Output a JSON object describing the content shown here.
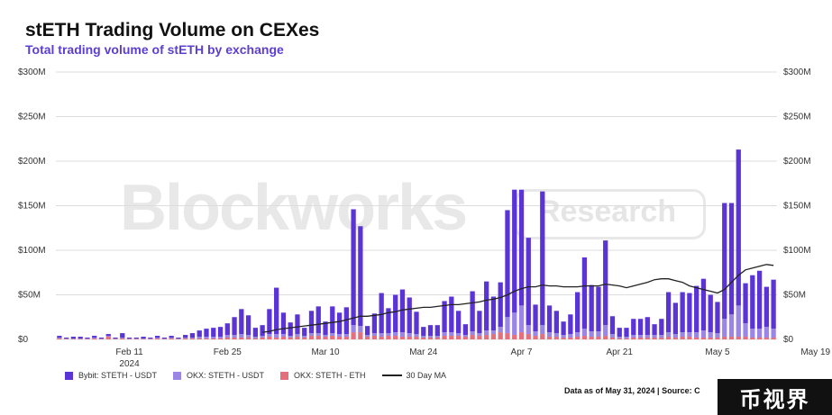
{
  "title": "stETH Trading Volume on CEXes",
  "subtitle": "Total trading volume of stETH by exchange",
  "footer": "Data as of May 31, 2024 | Source: C",
  "watermark": {
    "brand": "Blockworks",
    "research": "Research"
  },
  "logo_text": "币视界",
  "colors": {
    "subtitle": "#5b3fd1",
    "bybit": "#5b34d6",
    "okx_usdt": "#9b86e6",
    "okx_eth": "#e46f7d",
    "ma": "#222222",
    "grid": "#dddddd",
    "axis_text": "#333333"
  },
  "chart_data": {
    "type": "bar",
    "stacked": true,
    "x_start_label": "Feb 1",
    "x_ticks": [
      "Feb 11",
      "Feb 25",
      "Mar 10",
      "Mar 24",
      "Apr 7",
      "Apr 21",
      "May 5",
      "May 19"
    ],
    "x_tick_sublabel": "2024",
    "y_ticks": [
      "$0",
      "$50M",
      "$100M",
      "$150M",
      "$200M",
      "$250M",
      "$300M"
    ],
    "y_tick_values": [
      0,
      50,
      100,
      150,
      200,
      250,
      300
    ],
    "ylim": [
      0,
      300
    ],
    "y_unit": "$M",
    "series": [
      {
        "name": "Bybit: STETH - USDT",
        "color_key": "bybit",
        "values": [
          2,
          1,
          2,
          2,
          1,
          2,
          1,
          2,
          1,
          5,
          1,
          1,
          2,
          1,
          2,
          1,
          2,
          1,
          3,
          5,
          7,
          9,
          10,
          11,
          13,
          20,
          28,
          22,
          10,
          12,
          28,
          52,
          24,
          15,
          22,
          9,
          25,
          30,
          15,
          30,
          24,
          30,
          130,
          112,
          10,
          22,
          45,
          28,
          42,
          48,
          40,
          25,
          10,
          12,
          12,
          35,
          40,
          25,
          12,
          45,
          25,
          55,
          38,
          50,
          120,
          138,
          130,
          98,
          30,
          150,
          30,
          25,
          15,
          22,
          45,
          80,
          52,
          50,
          95,
          20,
          10,
          10,
          18,
          18,
          20,
          12,
          18,
          45,
          35,
          45,
          44,
          52,
          58,
          42,
          35,
          130,
          125,
          175,
          45,
          60,
          65,
          45,
          55
        ]
      },
      {
        "name": "OKX: STETH - USDT",
        "color_key": "okx_usdt",
        "values": [
          1,
          0.5,
          0.5,
          0.5,
          0.5,
          1,
          0.5,
          1,
          0.5,
          1,
          0.5,
          0.5,
          0.5,
          0.5,
          1,
          0.5,
          1,
          0.5,
          1,
          1,
          2,
          2,
          2,
          2,
          3,
          3,
          4,
          3,
          2,
          2,
          3,
          4,
          3,
          2,
          3,
          2,
          3,
          3,
          2,
          3,
          3,
          3,
          8,
          7,
          2,
          3,
          4,
          3,
          4,
          5,
          4,
          3,
          2,
          2,
          2,
          4,
          4,
          3,
          2,
          4,
          3,
          5,
          4,
          6,
          18,
          25,
          30,
          10,
          5,
          10,
          5,
          4,
          3,
          4,
          5,
          8,
          6,
          6,
          12,
          4,
          2,
          2,
          3,
          3,
          3,
          3,
          3,
          5,
          4,
          5,
          5,
          6,
          8,
          6,
          5,
          20,
          25,
          35,
          15,
          10,
          10,
          12,
          10
        ]
      },
      {
        "name": "OKX: STETH - ETH",
        "color_key": "okx_eth",
        "values": [
          1,
          0.5,
          0.5,
          0.5,
          0.5,
          1,
          0.5,
          3,
          0.5,
          1,
          0.5,
          0.5,
          0.5,
          0.5,
          1,
          0.5,
          1,
          0.5,
          1,
          1,
          1,
          1,
          1,
          1,
          2,
          2,
          2,
          2,
          1,
          2,
          3,
          2,
          3,
          2,
          3,
          2,
          4,
          4,
          3,
          4,
          3,
          3,
          8,
          8,
          3,
          4,
          3,
          4,
          4,
          3,
          3,
          3,
          2,
          2,
          2,
          4,
          4,
          4,
          3,
          5,
          4,
          5,
          6,
          8,
          7,
          5,
          8,
          6,
          4,
          6,
          3,
          3,
          2,
          2,
          3,
          4,
          3,
          3,
          4,
          2,
          1,
          1,
          2,
          2,
          2,
          2,
          2,
          3,
          2,
          3,
          3,
          2,
          2,
          2,
          2,
          3,
          3,
          3,
          3,
          2,
          2,
          2,
          2
        ]
      },
      {
        "name": "30 Day MA",
        "type": "line",
        "color_key": "ma",
        "values": [
          null,
          null,
          null,
          null,
          null,
          null,
          null,
          null,
          null,
          null,
          null,
          null,
          null,
          null,
          null,
          null,
          null,
          null,
          null,
          null,
          null,
          null,
          null,
          null,
          null,
          null,
          null,
          null,
          null,
          8,
          9,
          11,
          12,
          13,
          14,
          15,
          16,
          17,
          18,
          19,
          20,
          22,
          24,
          26,
          26,
          27,
          28,
          30,
          31,
          33,
          34,
          35,
          36,
          36,
          37,
          38,
          39,
          39,
          40,
          41,
          42,
          44,
          45,
          47,
          50,
          54,
          57,
          59,
          59,
          61,
          60,
          60,
          59,
          59,
          59,
          60,
          60,
          60,
          62,
          61,
          60,
          58,
          60,
          62,
          64,
          67,
          68,
          68,
          66,
          64,
          60,
          58,
          56,
          54,
          52,
          56,
          64,
          72,
          78,
          80,
          82,
          84,
          83
        ]
      }
    ]
  }
}
